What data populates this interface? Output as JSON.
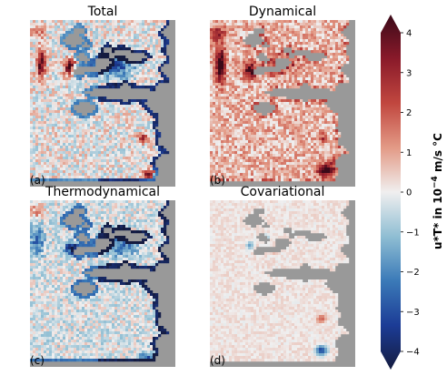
{
  "panels": [
    {
      "title": "Total",
      "letter": "(a)",
      "pattern": "total"
    },
    {
      "title": "Dynamical",
      "letter": "(b)",
      "pattern": "dynamical"
    },
    {
      "title": "Thermodynamical",
      "letter": "(c)",
      "pattern": "thermo"
    },
    {
      "title": "Covariational",
      "letter": "(d)",
      "pattern": "covar"
    }
  ],
  "colorbar": {
    "ticks": [
      "4",
      "3",
      "2",
      "1",
      "0",
      "−1",
      "−2",
      "−3",
      "−4"
    ],
    "label_main": "u*T* in 10",
    "label_exp": "−4",
    "label_units": " m/s °C",
    "range": [
      -4,
      4
    ],
    "colormap": [
      "#3b0a19",
      "#8a1a2a",
      "#c1473f",
      "#e39a86",
      "#f0efef",
      "#8fbed3",
      "#3b7ab8",
      "#1c3c96",
      "#141b3f"
    ]
  },
  "chart_data": {
    "type": "heatmap",
    "title": "",
    "panels": [
      "Total",
      "Dynamical",
      "Thermodynamical",
      "Covariational"
    ],
    "colorbar_label": "u*T* in 10^-4 m/s °C",
    "vmin": -4,
    "vmax": 4,
    "colorbar_ticks": [
      -4,
      -3,
      -2,
      -1,
      0,
      1,
      2,
      3,
      4
    ],
    "land_color": "#999999"
  }
}
